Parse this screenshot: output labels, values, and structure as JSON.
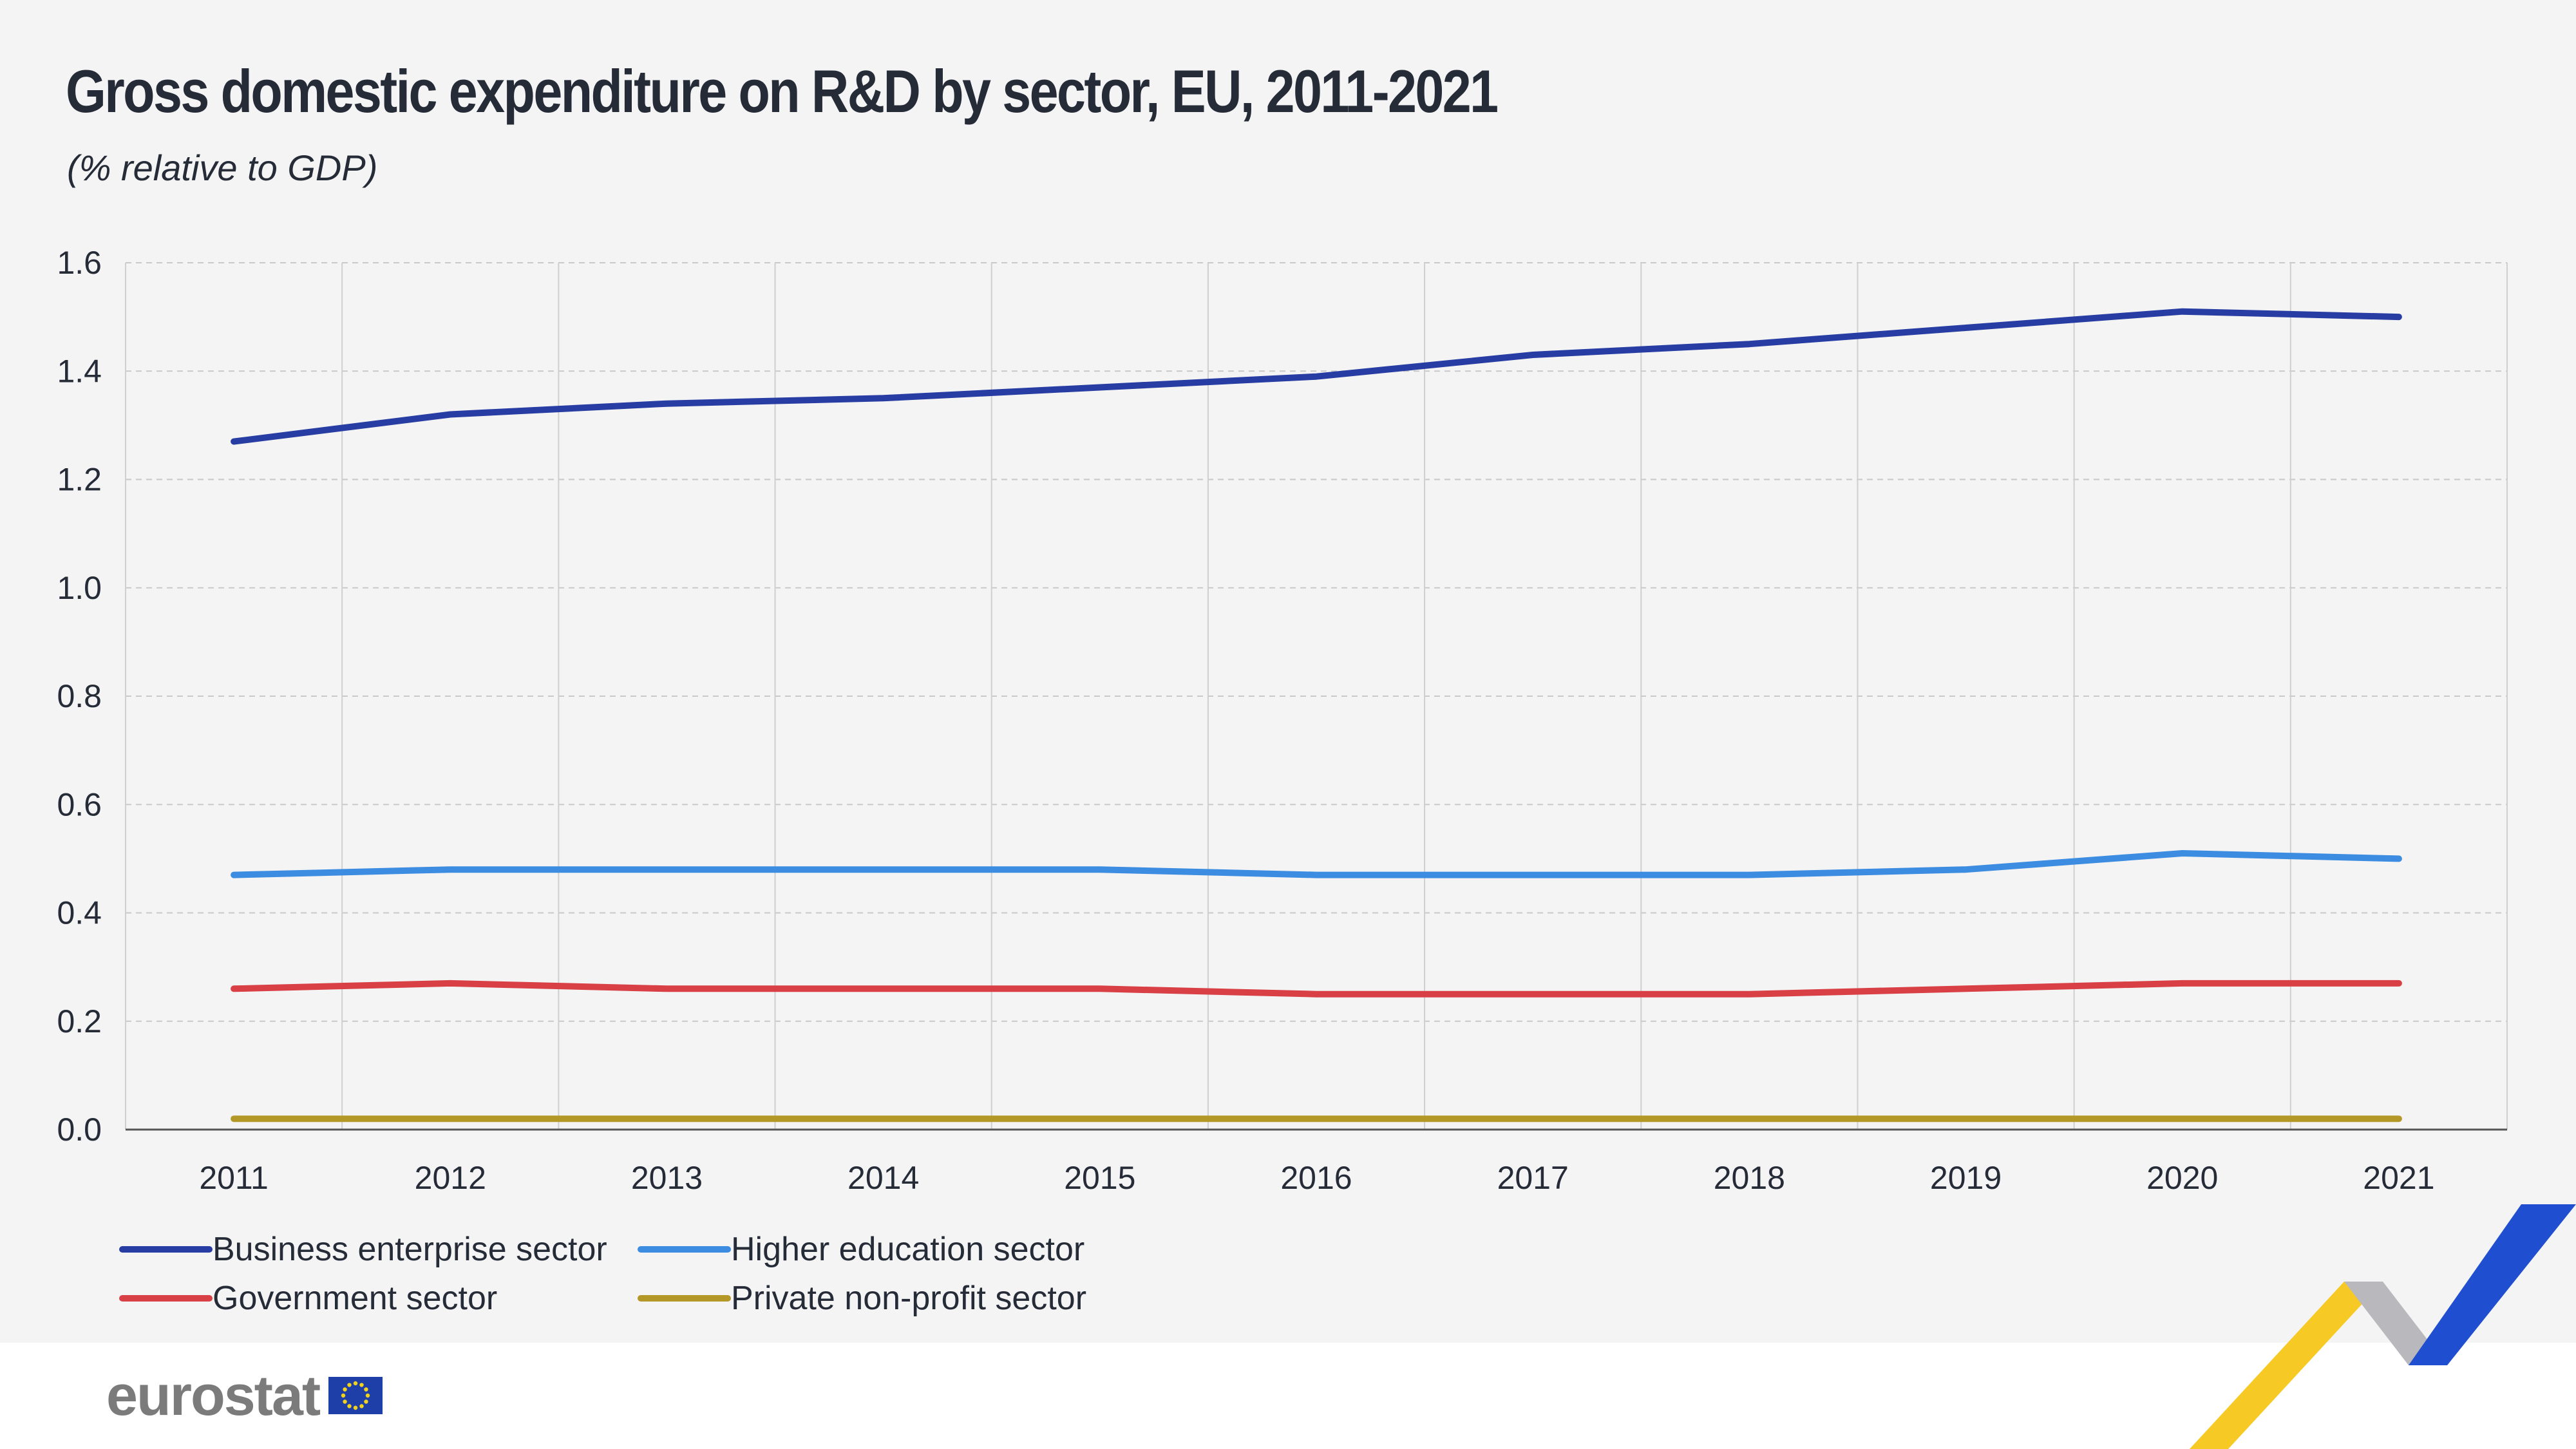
{
  "title": "Gross domestic expenditure on R&D by sector, EU, 2011-2021",
  "subtitle": "(% relative to GDP)",
  "brand": {
    "name": "eurostat",
    "flag_icon": "eu-flag-icon"
  },
  "colors": {
    "panel_bg": "#f4f4f4",
    "business": "#283da3",
    "higher_education": "#3c8ce2",
    "government": "#d84046",
    "private_non_profit": "#b49827"
  },
  "chart_data": {
    "type": "line",
    "title": "Gross domestic expenditure on R&D by sector, EU, 2011-2021",
    "subtitle": "(% relative to GDP)",
    "xlabel": "",
    "ylabel": "",
    "x": [
      "2011",
      "2012",
      "2013",
      "2014",
      "2015",
      "2016",
      "2017",
      "2018",
      "2019",
      "2020",
      "2021"
    ],
    "ylim": [
      0,
      1.6
    ],
    "yticks": [
      "0.0",
      "0.2",
      "0.4",
      "0.6",
      "0.8",
      "1.0",
      "1.2",
      "1.4",
      "1.6"
    ],
    "grid": true,
    "legend_position": "bottom-left",
    "series": [
      {
        "name": "Business enterprise sector",
        "color": "#283da3",
        "values": [
          1.27,
          1.32,
          1.34,
          1.35,
          1.37,
          1.39,
          1.43,
          1.45,
          1.48,
          1.51,
          1.5
        ]
      },
      {
        "name": "Higher education sector",
        "color": "#3c8ce2",
        "values": [
          0.47,
          0.48,
          0.48,
          0.48,
          0.48,
          0.47,
          0.47,
          0.47,
          0.48,
          0.51,
          0.5
        ]
      },
      {
        "name": "Government sector",
        "color": "#d84046",
        "values": [
          0.26,
          0.27,
          0.26,
          0.26,
          0.26,
          0.25,
          0.25,
          0.25,
          0.26,
          0.27,
          0.27
        ]
      },
      {
        "name": "Private non-profit sector",
        "color": "#b49827",
        "values": [
          0.02,
          0.02,
          0.02,
          0.02,
          0.02,
          0.02,
          0.02,
          0.02,
          0.02,
          0.02,
          0.02
        ]
      }
    ]
  }
}
